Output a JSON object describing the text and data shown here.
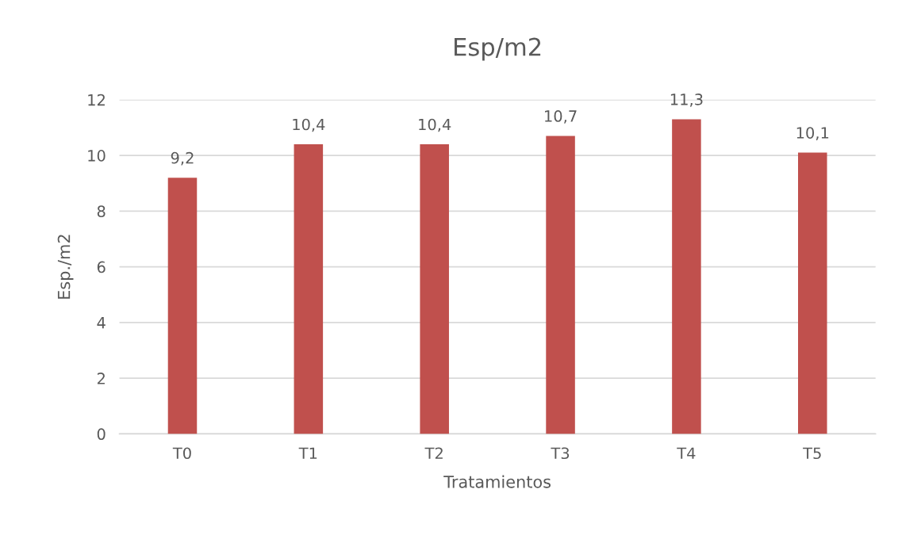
{
  "chart_data": {
    "type": "bar",
    "title": "Esp/m2",
    "xlabel": "Tratamientos",
    "ylabel": "Esp./m2",
    "categories": [
      "T0",
      "T1",
      "T2",
      "T3",
      "T4",
      "T5"
    ],
    "values": [
      9.2,
      10.4,
      10.4,
      10.7,
      11.3,
      10.1
    ],
    "value_labels": [
      "9,2",
      "10,4",
      "10,4",
      "10,7",
      "11,3",
      "10,1"
    ],
    "color": "#c0504d",
    "ylim": [
      0,
      12
    ],
    "yticks": [
      0,
      2,
      4,
      6,
      8,
      10,
      12
    ],
    "grid": "y",
    "legend": false
  }
}
